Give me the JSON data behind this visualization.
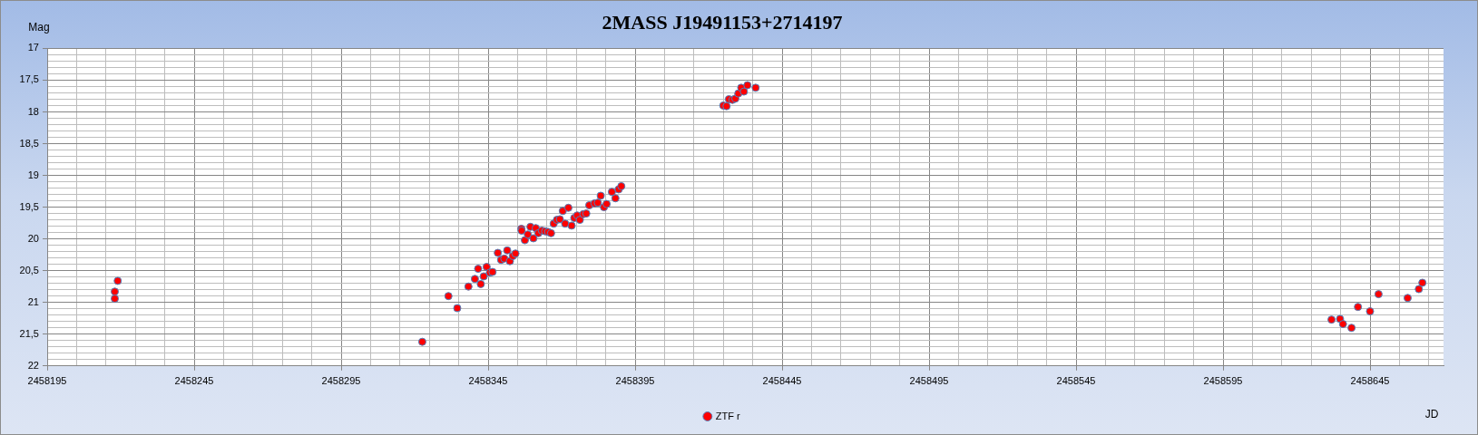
{
  "chart_data": {
    "type": "scatter",
    "title": "2MASS J19491153+2714197",
    "xlabel": "JD",
    "ylabel": "Mag",
    "xlim": [
      2458195,
      2458670
    ],
    "xticks": [
      2458195,
      {
        "value": 2458205,
        "label": null
      },
      {
        "value": 2458215,
        "label": null
      },
      {
        "value": 2458225,
        "label": null
      },
      {
        "value": 2458235,
        "label": null
      },
      2458245,
      {
        "value": 2458255,
        "label": null
      },
      {
        "value": 2458265,
        "label": null
      },
      {
        "value": 2458275,
        "label": null
      },
      {
        "value": 2458285,
        "label": null
      },
      2458295,
      {
        "value": 2458305,
        "label": null
      },
      {
        "value": 2458315,
        "label": null
      },
      {
        "value": 2458325,
        "label": null
      },
      {
        "value": 2458335,
        "label": null
      },
      2458345,
      {
        "value": 2458355,
        "label": null
      },
      {
        "value": 2458365,
        "label": null
      },
      {
        "value": 2458375,
        "label": null
      },
      {
        "value": 2458385,
        "label": null
      },
      2458395,
      {
        "value": 2458405,
        "label": null
      },
      {
        "value": 2458415,
        "label": null
      },
      {
        "value": 2458425,
        "label": null
      },
      {
        "value": 2458435,
        "label": null
      },
      2458445,
      {
        "value": 2458455,
        "label": null
      },
      {
        "value": 2458465,
        "label": null
      },
      {
        "value": 2458475,
        "label": null
      },
      {
        "value": 2458485,
        "label": null
      },
      2458495,
      {
        "value": 2458505,
        "label": null
      },
      {
        "value": 2458515,
        "label": null
      },
      {
        "value": 2458525,
        "label": null
      },
      {
        "value": 2458535,
        "label": null
      },
      2458545,
      {
        "value": 2458555,
        "label": null
      },
      {
        "value": 2458565,
        "label": null
      },
      {
        "value": 2458575,
        "label": null
      },
      {
        "value": 2458585,
        "label": null
      },
      2458595,
      {
        "value": 2458605,
        "label": null
      },
      {
        "value": 2458615,
        "label": null
      },
      {
        "value": 2458625,
        "label": null
      },
      {
        "value": 2458635,
        "label": null
      },
      2458645,
      {
        "value": 2458655,
        "label": null
      },
      {
        "value": 2458665,
        "label": null
      }
    ],
    "ylim": [
      22,
      17
    ],
    "yticks": [
      17,
      {
        "value": 17.1,
        "label": null
      },
      {
        "value": 17.2,
        "label": null
      },
      {
        "value": 17.3,
        "label": null
      },
      {
        "value": 17.4,
        "label": null
      },
      {
        "value": 17.5,
        "label": "17,5"
      },
      {
        "value": 17.6,
        "label": null
      },
      {
        "value": 17.7,
        "label": null
      },
      {
        "value": 17.8,
        "label": null
      },
      {
        "value": 17.9,
        "label": null
      },
      18,
      {
        "value": 18.1,
        "label": null
      },
      {
        "value": 18.2,
        "label": null
      },
      {
        "value": 18.3,
        "label": null
      },
      {
        "value": 18.4,
        "label": null
      },
      {
        "value": 18.5,
        "label": "18,5"
      },
      {
        "value": 18.6,
        "label": null
      },
      {
        "value": 18.7,
        "label": null
      },
      {
        "value": 18.8,
        "label": null
      },
      {
        "value": 18.9,
        "label": null
      },
      19,
      {
        "value": 19.1,
        "label": null
      },
      {
        "value": 19.2,
        "label": null
      },
      {
        "value": 19.3,
        "label": null
      },
      {
        "value": 19.4,
        "label": null
      },
      {
        "value": 19.5,
        "label": "19,5"
      },
      {
        "value": 19.6,
        "label": null
      },
      {
        "value": 19.7,
        "label": null
      },
      {
        "value": 19.8,
        "label": null
      },
      {
        "value": 19.9,
        "label": null
      },
      20,
      {
        "value": 20.1,
        "label": null
      },
      {
        "value": 20.2,
        "label": null
      },
      {
        "value": 20.3,
        "label": null
      },
      {
        "value": 20.4,
        "label": null
      },
      {
        "value": 20.5,
        "label": "20,5"
      },
      {
        "value": 20.6,
        "label": null
      },
      {
        "value": 20.7,
        "label": null
      },
      {
        "value": 20.8,
        "label": null
      },
      {
        "value": 20.9,
        "label": null
      },
      21,
      {
        "value": 21.1,
        "label": null
      },
      {
        "value": 21.2,
        "label": null
      },
      {
        "value": 21.3,
        "label": null
      },
      {
        "value": 21.4,
        "label": null
      },
      {
        "value": 21.5,
        "label": "21,5"
      },
      {
        "value": 21.6,
        "label": null
      },
      {
        "value": 21.7,
        "label": null
      },
      {
        "value": 21.8,
        "label": null
      },
      {
        "value": 21.9,
        "label": null
      },
      22
    ],
    "grid": true,
    "legend": "bottom",
    "marker": "circle",
    "series": [
      {
        "name": "ZTF r",
        "color": "#ff0000",
        "x": [
          2458218,
          2458218,
          2458219,
          2458322.6,
          2458331.5,
          2458334.5,
          2458338.3,
          2458340.5,
          2458341.6,
          2458342.5,
          2458343.5,
          2458344.5,
          2458345.6,
          2458346.5,
          2458348.3,
          2458349.4,
          2458350.5,
          2458351.5,
          2458352.4,
          2458353.4,
          2458354.3,
          2458356.3,
          2458356.4,
          2458357.5,
          2458358.5,
          2458359.4,
          2458360.4,
          2458361.2,
          2458362.1,
          2458363.3,
          2458364.4,
          2458365.4,
          2458366.4,
          2458367.3,
          2458368.4,
          2458369.4,
          2458370.4,
          2458371.2,
          2458372.3,
          2458373.4,
          2458374.3,
          2458375.3,
          2458376.2,
          2458377.4,
          2458378.4,
          2458379.4,
          2458381.2,
          2458382.3,
          2458383.3,
          2458384.4,
          2458385.3,
          2458387.1,
          2458388.3,
          2458389.4,
          2458390.3,
          2458425.0,
          2458426.1,
          2458426.9,
          2458428.1,
          2458429.1,
          2458430.1,
          2458431.1,
          2458432.0,
          2458433.2,
          2458436.0,
          2458631.9,
          2458634.8,
          2458635.8,
          2458638.7,
          2458640.9,
          2458645.0,
          2458647.9,
          2458657.8,
          2458661.6,
          2458662.8
        ],
        "values": [
          20.83,
          20.94,
          20.66,
          21.62,
          20.9,
          21.09,
          20.75,
          20.63,
          20.47,
          20.71,
          20.59,
          20.44,
          20.53,
          20.52,
          20.22,
          20.33,
          20.31,
          20.18,
          20.35,
          20.27,
          20.23,
          19.84,
          19.87,
          20.02,
          19.93,
          19.81,
          19.99,
          19.83,
          19.91,
          19.87,
          19.88,
          19.89,
          19.91,
          19.76,
          19.7,
          19.69,
          19.56,
          19.76,
          19.51,
          19.79,
          19.67,
          19.63,
          19.7,
          19.61,
          19.6,
          19.47,
          19.44,
          19.43,
          19.32,
          19.5,
          19.45,
          19.26,
          19.36,
          19.22,
          19.17,
          17.9,
          17.91,
          17.8,
          17.81,
          17.79,
          17.71,
          17.62,
          17.68,
          17.58,
          17.62,
          21.27,
          21.26,
          21.34,
          21.4,
          21.07,
          21.14,
          20.87,
          20.93,
          20.79,
          20.69
        ]
      }
    ]
  }
}
